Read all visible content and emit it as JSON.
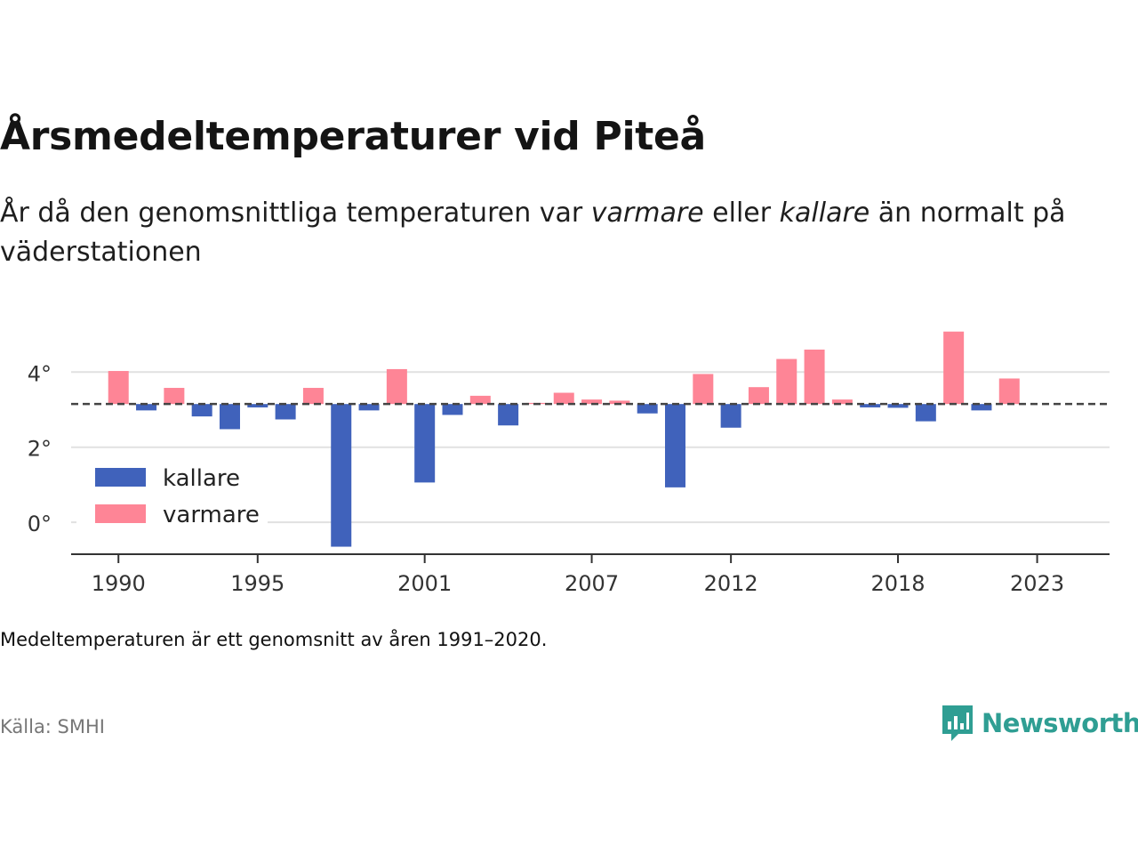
{
  "header": {
    "title": "Årsmedeltemperaturer vid Piteå",
    "subtitle_parts": [
      "År då den genomsnittliga temperaturen var ",
      "varmare",
      " eller ",
      "kallare",
      " än normalt på väderstationen"
    ]
  },
  "footer": {
    "note": "Medeltemperaturen är ett genomsnitt av åren 1991–2020.",
    "source": "Källa: SMHI",
    "brand": "Newsworthy"
  },
  "colors": {
    "kallare": "#4062bb",
    "varmare": "#fe8596",
    "brand": "#2f9e93",
    "grid": "#e1e1e1",
    "axis": "#333333"
  },
  "chart_data": {
    "type": "bar",
    "baseline": 3.15,
    "baseline_style": "dashed",
    "ylim": [
      -0.85,
      5.5
    ],
    "yticks": [
      0,
      2,
      4
    ],
    "ytick_labels": [
      "0°",
      "2°",
      "4°"
    ],
    "xlim": [
      1988.3,
      2025.6
    ],
    "xticks": [
      1990,
      1995,
      2001,
      2007,
      2012,
      2018,
      2023
    ],
    "xtick_labels": [
      "1990",
      "1995",
      "2001",
      "2007",
      "2012",
      "2018",
      "2023"
    ],
    "grid": true,
    "legend": {
      "position": "bottom-left",
      "entries": [
        {
          "key": "kallare",
          "label": "kallare"
        },
        {
          "key": "varmare",
          "label": "varmare"
        }
      ]
    },
    "series": [
      {
        "name": "kallare",
        "points": [
          [
            1991,
            2.98
          ],
          [
            1993,
            2.82
          ],
          [
            1994,
            2.48
          ],
          [
            1995,
            3.06
          ],
          [
            1996,
            2.74
          ],
          [
            1998,
            -0.65
          ],
          [
            1999,
            2.98
          ],
          [
            2001,
            1.06
          ],
          [
            2002,
            2.86
          ],
          [
            2004,
            2.58
          ],
          [
            2009,
            2.9
          ],
          [
            2010,
            0.93
          ],
          [
            2012,
            2.52
          ],
          [
            2017,
            3.06
          ],
          [
            2018,
            3.05
          ],
          [
            2019,
            2.69
          ],
          [
            2021,
            2.98
          ]
        ]
      },
      {
        "name": "varmare",
        "points": [
          [
            1990,
            4.03
          ],
          [
            1992,
            3.58
          ],
          [
            1997,
            3.58
          ],
          [
            2000,
            4.08
          ],
          [
            2003,
            3.37
          ],
          [
            2005,
            3.18
          ],
          [
            2006,
            3.45
          ],
          [
            2007,
            3.27
          ],
          [
            2008,
            3.24
          ],
          [
            2011,
            3.95
          ],
          [
            2013,
            3.6
          ],
          [
            2014,
            4.35
          ],
          [
            2015,
            4.6
          ],
          [
            2016,
            3.27
          ],
          [
            2020,
            5.08
          ],
          [
            2022,
            3.83
          ]
        ]
      }
    ]
  }
}
